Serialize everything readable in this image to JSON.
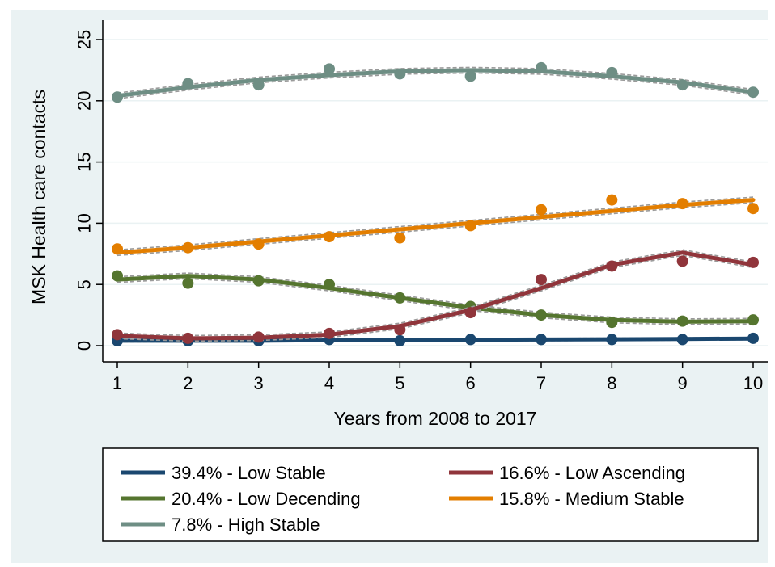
{
  "chart_data": {
    "type": "line",
    "title": "",
    "xlabel": "Years from 2008 to 2017",
    "ylabel": "MSK Health care contacts",
    "x": [
      1,
      2,
      3,
      4,
      5,
      6,
      7,
      8,
      9,
      10
    ],
    "xlim": [
      1,
      10
    ],
    "ylim": [
      0,
      25
    ],
    "xticks": [
      "1",
      "2",
      "3",
      "4",
      "5",
      "6",
      "7",
      "8",
      "9",
      "10"
    ],
    "yticks": [
      "0",
      "5",
      "10",
      "15",
      "20",
      "25"
    ],
    "grid": true,
    "legend_position": "bottom",
    "background_color": "#eaf2f3",
    "series": [
      {
        "name": "39.4% - Low Stable",
        "color": "#1a476f",
        "observed": [
          0.4,
          0.4,
          0.4,
          0.5,
          0.4,
          0.5,
          0.5,
          0.5,
          0.5,
          0.6
        ],
        "fitted": [
          0.4,
          0.4,
          0.4,
          0.45,
          0.45,
          0.48,
          0.5,
          0.52,
          0.55,
          0.58
        ]
      },
      {
        "name": "16.6% - Low Ascending",
        "color": "#90353b",
        "observed": [
          0.9,
          0.6,
          0.7,
          1.0,
          1.3,
          2.7,
          5.4,
          6.5,
          6.9,
          6.8
        ],
        "fitted": [
          0.8,
          0.6,
          0.65,
          0.9,
          1.6,
          2.9,
          4.7,
          6.6,
          7.6,
          6.6
        ]
      },
      {
        "name": "20.4% - Low Decending",
        "color": "#55752f",
        "observed": [
          5.7,
          5.1,
          5.3,
          5.0,
          3.9,
          3.2,
          2.5,
          1.9,
          2.0,
          2.1
        ],
        "fitted": [
          5.4,
          5.7,
          5.4,
          4.7,
          3.9,
          3.1,
          2.5,
          2.1,
          1.95,
          2.0
        ]
      },
      {
        "name": "15.8% - Medium Stable",
        "color": "#e37e00",
        "observed": [
          7.9,
          8.0,
          8.3,
          8.9,
          8.8,
          9.8,
          11.1,
          11.9,
          11.6,
          11.2
        ],
        "fitted": [
          7.6,
          8.0,
          8.5,
          9.0,
          9.5,
          10.0,
          10.5,
          11.0,
          11.5,
          11.9
        ]
      },
      {
        "name": "7.8%   - High Stable",
        "color": "#6e8e84",
        "observed": [
          20.3,
          21.4,
          21.3,
          22.6,
          22.2,
          22.0,
          22.7,
          22.3,
          21.3,
          20.7
        ],
        "fitted": [
          20.4,
          21.1,
          21.7,
          22.1,
          22.4,
          22.5,
          22.4,
          22.0,
          21.5,
          20.7
        ]
      }
    ],
    "legend_order": [
      0,
      1,
      2,
      3,
      4
    ]
  }
}
